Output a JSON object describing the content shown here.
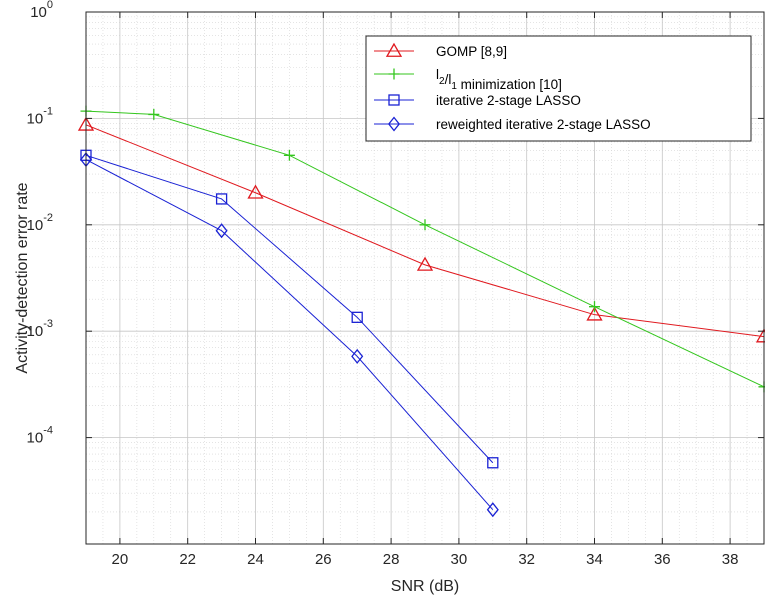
{
  "chart_data": {
    "type": "line",
    "xlabel": "SNR (dB)",
    "ylabel": "Activity-detection error rate",
    "xlim": [
      19,
      39
    ],
    "ylim": [
      1e-05,
      1
    ],
    "yscale": "log",
    "grid": true,
    "minor_grid": true,
    "legend_position": "top-right",
    "x_ticks": [
      "20",
      "22",
      "24",
      "26",
      "28",
      "30",
      "32",
      "34",
      "36",
      "38"
    ],
    "y_ticks": [
      {
        "base": "10",
        "exp": "-4"
      },
      {
        "base": "10",
        "exp": "-3"
      },
      {
        "base": "10",
        "exp": "-2"
      },
      {
        "base": "10",
        "exp": "-1"
      },
      {
        "base": "10",
        "exp": "0"
      }
    ],
    "series": [
      {
        "name": "GOMP [8,9]",
        "label_parts": [
          {
            "text": "GOMP [8,9]",
            "sub": false
          }
        ],
        "color": "#e0191f",
        "marker": "triangle",
        "x": [
          19,
          24,
          29,
          34,
          39
        ],
        "y": [
          0.087,
          0.02,
          0.0042,
          0.00143,
          0.00089
        ]
      },
      {
        "name": "l2/l1 minimization [10]",
        "label_parts": [
          {
            "text": "l",
            "sub": false
          },
          {
            "text": "2",
            "sub": true
          },
          {
            "text": "/l",
            "sub": false
          },
          {
            "text": "1",
            "sub": true
          },
          {
            "text": " minimization [10]",
            "sub": false
          }
        ],
        "color": "#34c61e",
        "marker": "plus",
        "x": [
          19,
          21,
          25,
          29,
          34,
          39
        ],
        "y": [
          0.117,
          0.109,
          0.045,
          0.01,
          0.0017,
          0.0003
        ]
      },
      {
        "name": "iterative 2-stage LASSO",
        "label_parts": [
          {
            "text": "iterative 2-stage LASSO",
            "sub": false
          }
        ],
        "color": "#1a22d4",
        "marker": "square",
        "x": [
          19,
          23,
          27,
          31
        ],
        "y": [
          0.045,
          0.0175,
          0.00135,
          5.8e-05
        ]
      },
      {
        "name": "reweighted iterative 2-stage LASSO",
        "label_parts": [
          {
            "text": "reweighted iterative 2-stage LASSO",
            "sub": false
          }
        ],
        "color": "#1a22d4",
        "marker": "diamond",
        "x": [
          19,
          23,
          27,
          31
        ],
        "y": [
          0.041,
          0.0088,
          0.00058,
          2.1e-05
        ]
      }
    ]
  }
}
